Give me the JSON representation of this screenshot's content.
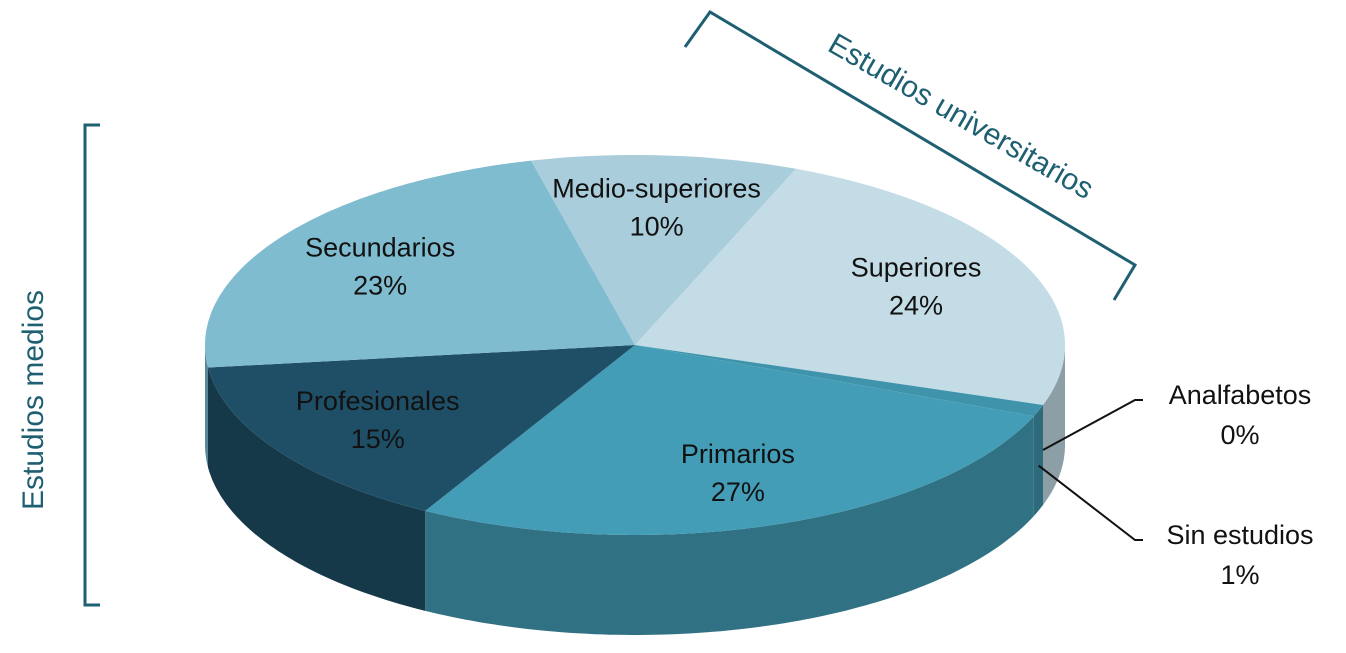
{
  "chart_data": {
    "type": "pie",
    "categories": [
      "Medio-superiores",
      "Superiores",
      "Analfabetos",
      "Sin estudios",
      "Primarios",
      "Profesionales",
      "Secundarios"
    ],
    "values": [
      10,
      24,
      0,
      1,
      27,
      15,
      23
    ],
    "value_labels": [
      "10%",
      "24%",
      "0%",
      "1%",
      "27%",
      "15%",
      "23%"
    ],
    "colors": [
      "#a9cddb",
      "#c3dce6",
      "#3a8ca6",
      "#3f94ac",
      "#439db7",
      "#1f4f66",
      "#80bccf"
    ],
    "annotations": [
      "Estudios medios",
      "Estudios universitarios"
    ]
  }
}
